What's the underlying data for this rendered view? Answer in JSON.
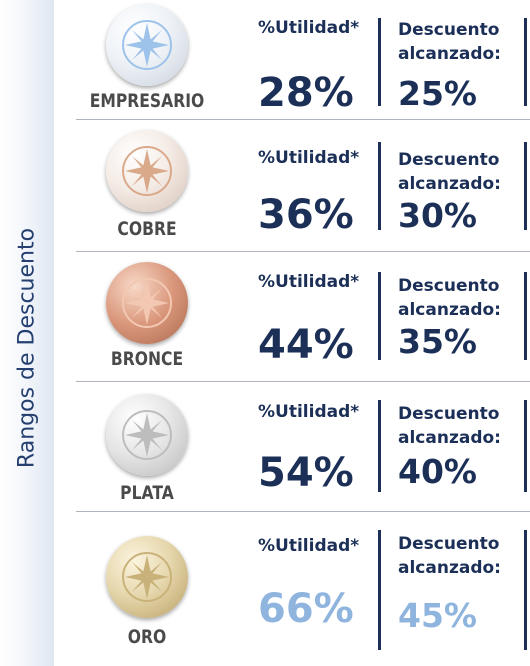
{
  "sidebar": {
    "title": "Rangos de Descuento"
  },
  "tiers": [
    {
      "name": "EMPRESARIO",
      "utility_label": "%Utilidad*",
      "utility_value": "28%",
      "discount_label_1": "Descuento",
      "discount_label_2": "alcanzado:",
      "discount_value": "25%",
      "medal_color": "#e4eaf2",
      "medal_accent": "#9ec3ea"
    },
    {
      "name": "COBRE",
      "utility_label": "%Utilidad*",
      "utility_value": "36%",
      "discount_label_1": "Descuento",
      "discount_label_2": "alcanzado:",
      "discount_value": "30%",
      "medal_color": "#f1e5dc",
      "medal_accent": "#d9a98a"
    },
    {
      "name": "BRONCE",
      "utility_label": "%Utilidad*",
      "utility_value": "44%",
      "discount_label_1": "Descuento",
      "discount_label_2": "alcanzado:",
      "discount_value": "35%",
      "medal_color": "#d9967a",
      "medal_accent": "#f3c8b2"
    },
    {
      "name": "PLATA",
      "utility_label": "%Utilidad*",
      "utility_value": "54%",
      "discount_label_1": "Descuento",
      "discount_label_2": "alcanzado:",
      "discount_value": "40%",
      "medal_color": "#e4e4e4",
      "medal_accent": "#bdbdbd"
    },
    {
      "name": "ORO",
      "utility_label": "%Utilidad*",
      "utility_value": "66%",
      "discount_label_1": "Descuento",
      "discount_label_2": "alcanzado:",
      "discount_value": "45%",
      "medal_color": "#e8dcb8",
      "medal_accent": "#c9b27a"
    }
  ],
  "colors": {
    "primary": "#1b2f57",
    "highlight": "#8fb4de"
  }
}
